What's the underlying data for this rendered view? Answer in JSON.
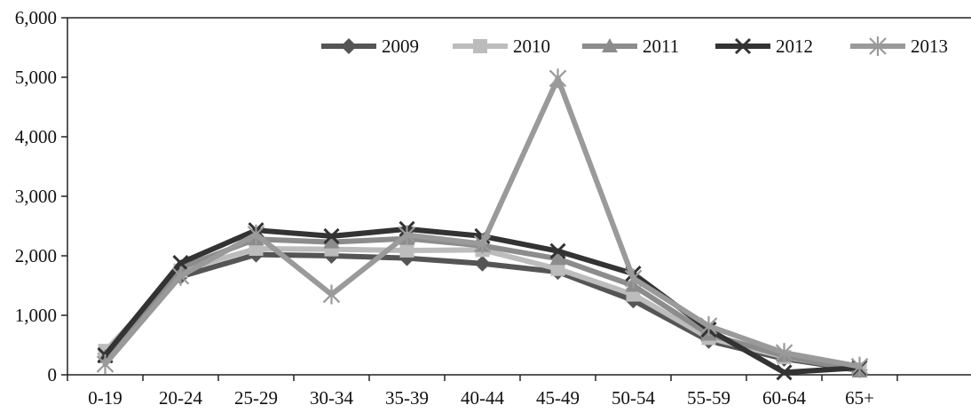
{
  "chart_data": {
    "type": "line",
    "title": "",
    "xlabel": "",
    "ylabel": "",
    "categories": [
      "0-19",
      "20-24",
      "25-29",
      "30-34",
      "35-39",
      "40-44",
      "45-49",
      "50-54",
      "55-59",
      "60-64",
      "65+"
    ],
    "ylim": [
      0,
      6000
    ],
    "y_ticks": [
      0,
      1000,
      2000,
      3000,
      4000,
      5000,
      6000
    ],
    "y_tick_labels": [
      "0",
      "1,000",
      "2,000",
      "3,000",
      "4,000",
      "5,000",
      "6,000"
    ],
    "grid": false,
    "legend_position": "top-right",
    "series": [
      {
        "name": "2009",
        "color": "#555555",
        "marker": "diamond",
        "values": [
          350,
          1650,
          2020,
          2000,
          1960,
          1870,
          1730,
          1250,
          570,
          270,
          80
        ]
      },
      {
        "name": "2010",
        "color": "#bcbcbc",
        "marker": "square",
        "values": [
          400,
          1750,
          2120,
          2110,
          2090,
          2100,
          1780,
          1350,
          620,
          300,
          90
        ]
      },
      {
        "name": "2011",
        "color": "#8c8c8c",
        "marker": "triangle",
        "values": [
          300,
          1800,
          2280,
          2230,
          2290,
          2170,
          1950,
          1500,
          680,
          320,
          60
        ]
      },
      {
        "name": "2012",
        "color": "#333333",
        "marker": "x",
        "values": [
          330,
          1880,
          2430,
          2330,
          2450,
          2330,
          2080,
          1700,
          760,
          40,
          120
        ]
      },
      {
        "name": "2013",
        "color": "#9a9a9a",
        "marker": "star",
        "values": [
          180,
          1660,
          2360,
          1350,
          2350,
          2200,
          4980,
          1620,
          820,
          370,
          140
        ]
      }
    ]
  }
}
